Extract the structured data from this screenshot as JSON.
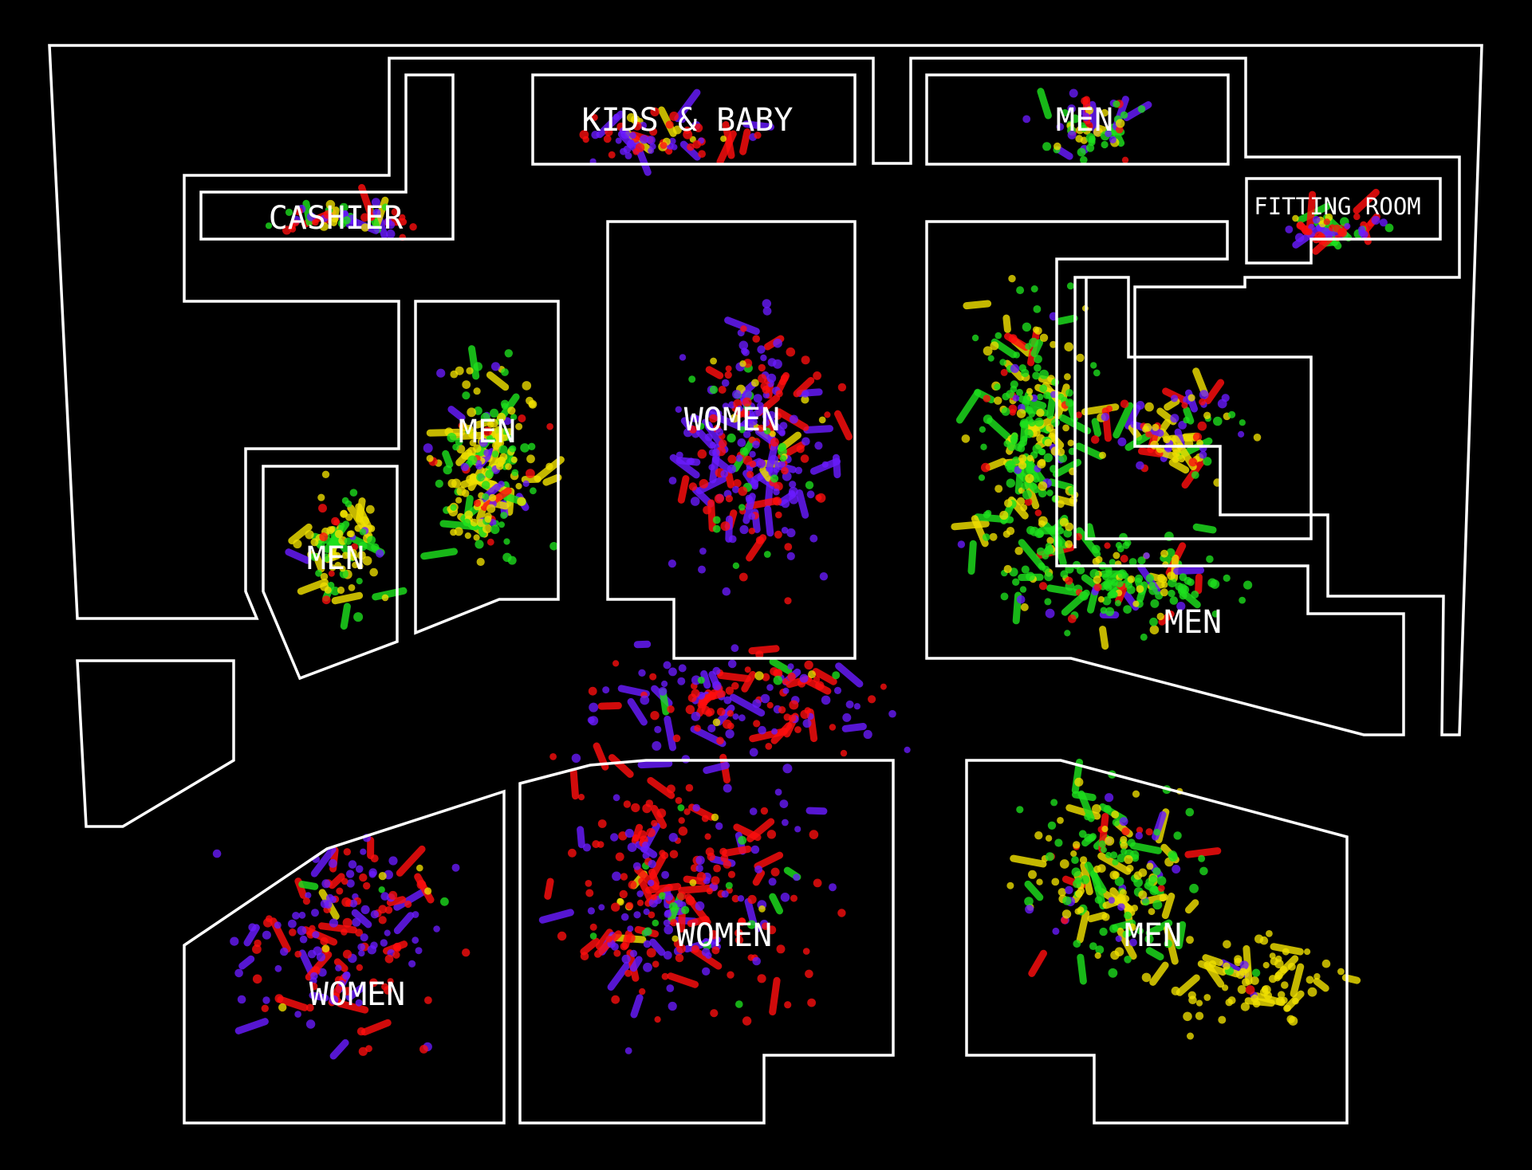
{
  "map": {
    "zones": {
      "cashier": "CASHIER",
      "kids_baby": "KIDS & BABY",
      "men_top": "MEN",
      "fitting_room": "FITTING ROOM",
      "men_left_inner": "MEN",
      "men_left_outer": "MEN",
      "women_center": "WOMEN",
      "men_right": "MEN",
      "women_bottom_left": "WOMEN",
      "women_bottom_center": "WOMEN",
      "men_bottom_right": "MEN"
    },
    "trace_colors": {
      "purple": "#6a1bff",
      "red": "#ff0e0e",
      "green": "#1ee01e",
      "yellow": "#f0e000"
    }
  }
}
